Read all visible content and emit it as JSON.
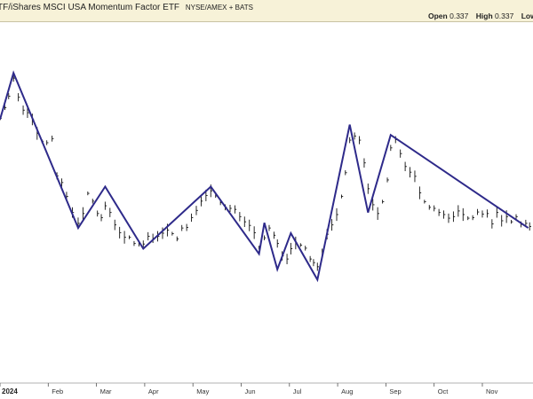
{
  "header": {
    "title": "TF/iShares MSCI USA Momentum Factor ETF",
    "exchange": "NYSE/AMEX + BATS",
    "open_label": "Open",
    "open_value": "0.337",
    "high_label": "High",
    "high_value": "0.337",
    "low_label": "Low"
  },
  "colors": {
    "zigzag": "#2e2a8a",
    "bars": "#111111",
    "header_bg": "#f7f2d8"
  },
  "chart_data": {
    "type": "line",
    "title": "TF/iShares MSCI USA Momentum Factor ETF",
    "x_tick_labels": [
      "2024",
      "Feb",
      "Mar",
      "Apr",
      "May",
      "Jun",
      "Jul",
      "Aug",
      "Sep",
      "Oct",
      "Nov"
    ],
    "x_tick_months": [
      0,
      1,
      2,
      3,
      4,
      5,
      6,
      7,
      8,
      9,
      10
    ],
    "xlim_months": [
      0,
      11.05
    ],
    "ylim": [
      0.3,
      1.0
    ],
    "grid": false,
    "zigzag_series": {
      "name": "",
      "x_months": [
        0.0,
        0.28,
        1.62,
        2.18,
        2.97,
        4.37,
        5.37,
        5.48,
        5.75,
        6.03,
        6.58,
        7.25,
        7.63,
        8.1,
        10.95
      ],
      "y": [
        0.81,
        0.9,
        0.6,
        0.68,
        0.56,
        0.68,
        0.55,
        0.61,
        0.52,
        0.59,
        0.5,
        0.8,
        0.63,
        0.78,
        0.6
      ]
    },
    "price_bars": {
      "series_name": "",
      "x_months": [
        0.0,
        0.1,
        0.18,
        0.28,
        0.38,
        0.48,
        0.57,
        0.67,
        0.77,
        0.87,
        0.97,
        1.08,
        1.18,
        1.28,
        1.38,
        1.5,
        1.62,
        1.72,
        1.82,
        1.92,
        2.02,
        2.1,
        2.18,
        2.28,
        2.38,
        2.48,
        2.58,
        2.68,
        2.78,
        2.88,
        2.97,
        3.07,
        3.17,
        3.27,
        3.37,
        3.47,
        3.57,
        3.67,
        3.77,
        3.87,
        3.97,
        4.07,
        4.17,
        4.27,
        4.37,
        4.47,
        4.57,
        4.67,
        4.77,
        4.87,
        4.97,
        5.07,
        5.17,
        5.27,
        5.37,
        5.48,
        5.58,
        5.68,
        5.75,
        5.85,
        5.95,
        6.03,
        6.13,
        6.23,
        6.33,
        6.43,
        6.5,
        6.58,
        6.68,
        6.78,
        6.88,
        6.98,
        7.08,
        7.16,
        7.25,
        7.35,
        7.45,
        7.55,
        7.63,
        7.73,
        7.83,
        7.93,
        8.03,
        8.1,
        8.2,
        8.3,
        8.4,
        8.5,
        8.6,
        8.7,
        8.8,
        8.9,
        9.0,
        9.1,
        9.2,
        9.3,
        9.4,
        9.5,
        9.6,
        9.7,
        9.8,
        9.9,
        10.0,
        10.1,
        10.2,
        10.3,
        10.4,
        10.5,
        10.6,
        10.7,
        10.8,
        10.9,
        10.98
      ],
      "close": [
        0.812,
        0.833,
        0.855,
        0.89,
        0.853,
        0.828,
        0.823,
        0.81,
        0.783,
        0.768,
        0.765,
        0.773,
        0.701,
        0.688,
        0.661,
        0.63,
        0.609,
        0.628,
        0.667,
        0.652,
        0.628,
        0.62,
        0.643,
        0.63,
        0.606,
        0.591,
        0.582,
        0.582,
        0.57,
        0.57,
        0.569,
        0.584,
        0.58,
        0.584,
        0.59,
        0.596,
        0.589,
        0.579,
        0.6,
        0.601,
        0.62,
        0.634,
        0.652,
        0.663,
        0.672,
        0.662,
        0.649,
        0.64,
        0.638,
        0.636,
        0.622,
        0.612,
        0.605,
        0.591,
        0.562,
        0.581,
        0.6,
        0.586,
        0.57,
        0.546,
        0.54,
        0.56,
        0.571,
        0.567,
        0.561,
        0.54,
        0.533,
        0.525,
        0.551,
        0.588,
        0.606,
        0.626,
        0.661,
        0.707,
        0.77,
        0.778,
        0.77,
        0.726,
        0.676,
        0.645,
        0.628,
        0.651,
        0.693,
        0.755,
        0.771,
        0.744,
        0.719,
        0.708,
        0.7,
        0.668,
        0.651,
        0.64,
        0.638,
        0.63,
        0.626,
        0.619,
        0.622,
        0.633,
        0.626,
        0.619,
        0.62,
        0.631,
        0.627,
        0.628,
        0.608,
        0.63,
        0.614,
        0.622,
        0.612,
        0.622,
        0.607,
        0.609,
        0.603
      ]
    }
  },
  "axis": {
    "year_label": "2024"
  }
}
